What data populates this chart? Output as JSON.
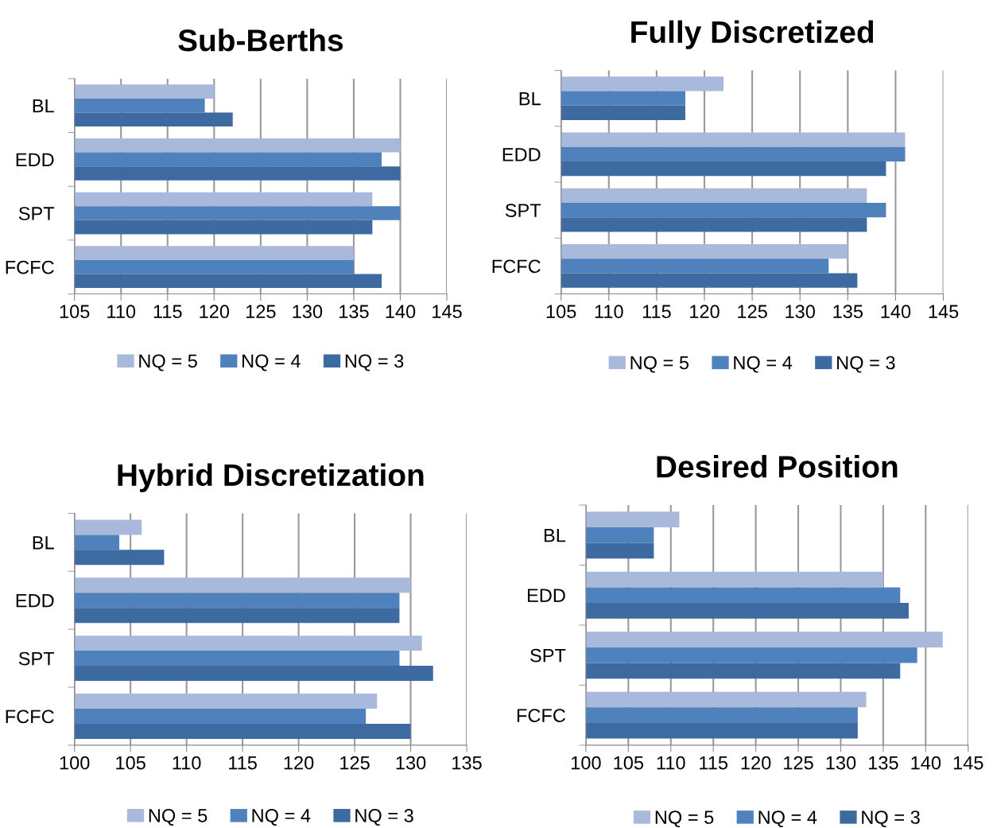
{
  "chart_data": [
    {
      "type": "bar",
      "orientation": "horizontal",
      "title": "Sub-Berths",
      "categories": [
        "BL",
        "EDD",
        "SPT",
        "FCFC"
      ],
      "series": [
        {
          "name": "NQ = 5",
          "color": "#a9b9dc",
          "values": [
            120,
            140,
            137,
            135
          ]
        },
        {
          "name": "NQ = 4",
          "color": "#4f81bd",
          "values": [
            119,
            138,
            140,
            135
          ]
        },
        {
          "name": "NQ = 3",
          "color": "#3d6aa0",
          "values": [
            122,
            140,
            137,
            138
          ]
        }
      ],
      "xlim": [
        105,
        145
      ],
      "xticks": [
        105,
        110,
        115,
        120,
        125,
        130,
        135,
        140,
        145
      ],
      "grid": "x",
      "legend": "bottom"
    },
    {
      "type": "bar",
      "orientation": "horizontal",
      "title": "Fully Discretized",
      "categories": [
        "BL",
        "EDD",
        "SPT",
        "FCFC"
      ],
      "series": [
        {
          "name": "NQ = 5",
          "color": "#a9b9dc",
          "values": [
            122,
            141,
            137,
            135
          ]
        },
        {
          "name": "NQ = 4",
          "color": "#4f81bd",
          "values": [
            118,
            141,
            139,
            133
          ]
        },
        {
          "name": "NQ = 3",
          "color": "#3d6aa0",
          "values": [
            118,
            139,
            137,
            136
          ]
        }
      ],
      "xlim": [
        105,
        145
      ],
      "xticks": [
        105,
        110,
        115,
        120,
        125,
        130,
        135,
        140,
        145
      ],
      "grid": "x",
      "legend": "bottom"
    },
    {
      "type": "bar",
      "orientation": "horizontal",
      "title": "Hybrid Discretization",
      "categories": [
        "BL",
        "EDD",
        "SPT",
        "FCFC"
      ],
      "series": [
        {
          "name": "NQ = 5",
          "color": "#a9b9dc",
          "values": [
            106,
            130,
            131,
            127
          ]
        },
        {
          "name": "NQ = 4",
          "color": "#4f81bd",
          "values": [
            104,
            129,
            129,
            126
          ]
        },
        {
          "name": "NQ = 3",
          "color": "#3d6aa0",
          "values": [
            108,
            129,
            132,
            130
          ]
        }
      ],
      "xlim": [
        100,
        135
      ],
      "xticks": [
        100,
        105,
        110,
        115,
        120,
        125,
        130,
        135
      ],
      "grid": "x",
      "legend": "bottom"
    },
    {
      "type": "bar",
      "orientation": "horizontal",
      "title": "Desired Position",
      "categories": [
        "BL",
        "EDD",
        "SPT",
        "FCFC"
      ],
      "series": [
        {
          "name": "NQ = 5",
          "color": "#a9b9dc",
          "values": [
            111,
            135,
            142,
            133
          ]
        },
        {
          "name": "NQ = 4",
          "color": "#4f81bd",
          "values": [
            108,
            137,
            139,
            132
          ]
        },
        {
          "name": "NQ = 3",
          "color": "#3d6aa0",
          "values": [
            108,
            138,
            137,
            132
          ]
        }
      ],
      "xlim": [
        100,
        145
      ],
      "xticks": [
        100,
        105,
        110,
        115,
        120,
        125,
        130,
        135,
        140,
        145
      ],
      "grid": "x",
      "legend": "bottom"
    }
  ]
}
